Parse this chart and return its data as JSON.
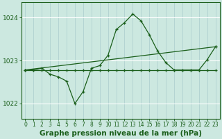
{
  "background_color": "#cce8e0",
  "grid_color_v": "#aacccc",
  "grid_color_h": "#ffffff",
  "line_color": "#1a5e1a",
  "title": "Graphe pression niveau de la mer (hPa)",
  "title_fontsize": 7.5,
  "tick_fontsize": 5.5,
  "xlim": [
    -0.5,
    23.5
  ],
  "ylim": [
    1021.65,
    1024.35
  ],
  "yticks": [
    1022,
    1023,
    1024
  ],
  "xticks": [
    0,
    1,
    2,
    3,
    4,
    5,
    6,
    7,
    8,
    9,
    10,
    11,
    12,
    13,
    14,
    15,
    16,
    17,
    18,
    19,
    20,
    21,
    22,
    23
  ],
  "series1_x": [
    0,
    1,
    2,
    3,
    4,
    5,
    6,
    7,
    8,
    9,
    10,
    11,
    12,
    13,
    14,
    15,
    16,
    17,
    18,
    19,
    20,
    21,
    22,
    23
  ],
  "series1_y": [
    1022.78,
    1022.78,
    1022.82,
    1022.68,
    1022.62,
    1022.52,
    1022.0,
    1022.28,
    1022.82,
    1022.88,
    1023.12,
    1023.72,
    1023.88,
    1024.08,
    1023.92,
    1023.6,
    1023.22,
    1022.95,
    1022.78,
    1022.78,
    1022.78,
    1022.78,
    1023.02,
    1023.32
  ],
  "series2_x": [
    0,
    1,
    2,
    3,
    4,
    5,
    6,
    7,
    8,
    9,
    10,
    11,
    12,
    13,
    14,
    15,
    16,
    17,
    18,
    19,
    20,
    21,
    22,
    23
  ],
  "series2_y": [
    1022.78,
    1022.78,
    1022.78,
    1022.78,
    1022.78,
    1022.78,
    1022.78,
    1022.78,
    1022.78,
    1022.78,
    1022.78,
    1022.78,
    1022.78,
    1022.78,
    1022.78,
    1022.78,
    1022.78,
    1022.78,
    1022.78,
    1022.78,
    1022.78,
    1022.78,
    1022.78,
    1022.78
  ],
  "series3_x": [
    0,
    23
  ],
  "series3_y": [
    1022.78,
    1023.32
  ]
}
